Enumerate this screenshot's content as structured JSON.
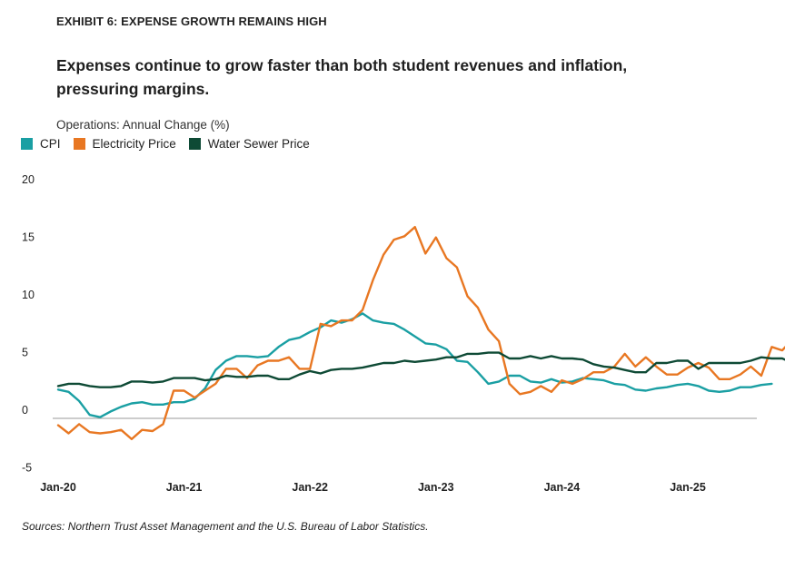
{
  "exhibit_label": "EXHIBIT 6: EXPENSE GROWTH REMAINS HIGH",
  "headline": "Expenses continue to grow faster than both student revenues and inflation, pressuring margins.",
  "source": "Sources: Northern Trust Asset Management and the U.S. Bureau of Labor Statistics.",
  "chart_data": {
    "type": "line",
    "title": "Expenses continue to grow faster than both student revenues and inflation, pressuring margins.",
    "ylabel": "Operations: Annual Change (%)",
    "xlabel": "",
    "ylim": [
      -5,
      20
    ],
    "yticks": [
      -5,
      0,
      5,
      10,
      15,
      20
    ],
    "x_tick_labels": [
      "Jan-20",
      "Jan-21",
      "Jan-22",
      "Jan-23",
      "Jan-24",
      "Jan-25"
    ],
    "x_start": "Jan-20",
    "x_frequency": "monthly",
    "legend_position": "top-left",
    "grid": false,
    "series": [
      {
        "name": "CPI",
        "color": "#1a9fa3",
        "values": [
          2.5,
          2.3,
          1.5,
          0.3,
          0.1,
          0.6,
          1.0,
          1.3,
          1.4,
          1.2,
          1.2,
          1.4,
          1.4,
          1.7,
          2.6,
          4.2,
          5.0,
          5.4,
          5.4,
          5.3,
          5.4,
          6.2,
          6.8,
          7.0,
          7.5,
          7.9,
          8.5,
          8.3,
          8.6,
          9.1,
          8.5,
          8.3,
          8.2,
          7.7,
          7.1,
          6.5,
          6.4,
          6.0,
          5.0,
          4.9,
          4.0,
          3.0,
          3.2,
          3.7,
          3.7,
          3.2,
          3.1,
          3.4,
          3.1,
          3.2,
          3.5,
          3.4,
          3.3,
          3.0,
          2.9,
          2.5,
          2.4,
          2.6,
          2.7,
          2.9,
          3.0,
          2.8,
          2.4,
          2.3,
          2.4,
          2.7,
          2.7,
          2.9,
          3.0
        ]
      },
      {
        "name": "Electricity Price",
        "color": "#e87722",
        "values": [
          -0.6,
          -1.3,
          -0.5,
          -1.2,
          -1.3,
          -1.2,
          -1.0,
          -1.8,
          -1.0,
          -1.1,
          -0.5,
          2.4,
          2.4,
          1.8,
          2.4,
          3.0,
          4.3,
          4.3,
          3.5,
          4.6,
          5.0,
          5.0,
          5.3,
          4.3,
          4.3,
          8.2,
          8.0,
          8.5,
          8.5,
          9.4,
          12.0,
          14.2,
          15.5,
          15.8,
          16.6,
          14.3,
          15.7,
          13.9,
          13.1,
          10.6,
          9.6,
          7.7,
          6.7,
          3.0,
          2.1,
          2.3,
          2.8,
          2.3,
          3.3,
          3.0,
          3.4,
          4.0,
          4.0,
          4.5,
          5.6,
          4.5,
          5.3,
          4.5,
          3.8,
          3.8,
          4.4,
          4.8,
          4.4,
          3.4,
          3.4,
          3.8,
          4.5,
          3.7,
          6.2,
          5.9,
          6.9,
          5.2
        ]
      },
      {
        "name": "Water Sewer Price",
        "color": "#0e4a35",
        "values": [
          2.8,
          3.0,
          3.0,
          2.8,
          2.7,
          2.7,
          2.8,
          3.2,
          3.2,
          3.1,
          3.2,
          3.5,
          3.5,
          3.5,
          3.3,
          3.4,
          3.7,
          3.6,
          3.6,
          3.7,
          3.7,
          3.4,
          3.4,
          3.8,
          4.1,
          3.9,
          4.2,
          4.3,
          4.3,
          4.4,
          4.6,
          4.8,
          4.8,
          5.0,
          4.9,
          5.0,
          5.1,
          5.3,
          5.3,
          5.6,
          5.6,
          5.7,
          5.7,
          5.2,
          5.2,
          5.4,
          5.2,
          5.4,
          5.2,
          5.2,
          5.1,
          4.7,
          4.5,
          4.4,
          4.2,
          4.0,
          4.0,
          4.8,
          4.8,
          5.0,
          5.0,
          4.3,
          4.8,
          4.8,
          4.8,
          4.8,
          5.0,
          5.3,
          5.2,
          5.2,
          4.8,
          4.7
        ]
      }
    ]
  }
}
